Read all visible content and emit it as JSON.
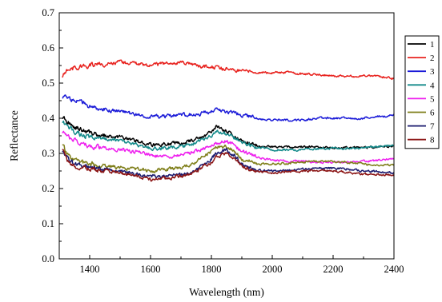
{
  "chart_data": {
    "type": "line",
    "title": "",
    "xlabel": "Wavelength (nm)",
    "ylabel": "Reflectance",
    "xlim": [
      1300,
      2400
    ],
    "ylim": [
      0.0,
      0.7
    ],
    "xticks": [
      1400,
      1600,
      1800,
      2000,
      2200,
      2400
    ],
    "yticks": [
      "0.0",
      "0.1",
      "0.2",
      "0.3",
      "0.4",
      "0.5",
      "0.6",
      "0.7"
    ],
    "grid": false,
    "legend_position": "right",
    "x": [
      1310,
      1325,
      1350,
      1400,
      1450,
      1500,
      1550,
      1600,
      1650,
      1700,
      1750,
      1800,
      1815,
      1850,
      1875,
      1900,
      1950,
      2000,
      2050,
      2100,
      2150,
      2200,
      2250,
      2300,
      2350,
      2400
    ],
    "series": [
      {
        "name": "1",
        "color": "#000000",
        "values": [
          0.405,
          0.39,
          0.375,
          0.36,
          0.35,
          0.345,
          0.335,
          0.325,
          0.325,
          0.33,
          0.34,
          0.36,
          0.375,
          0.365,
          0.35,
          0.335,
          0.322,
          0.318,
          0.318,
          0.318,
          0.318,
          0.316,
          0.316,
          0.318,
          0.318,
          0.32
        ]
      },
      {
        "name": "2",
        "color": "#e8231f",
        "values": [
          0.52,
          0.535,
          0.545,
          0.55,
          0.555,
          0.56,
          0.555,
          0.55,
          0.555,
          0.56,
          0.55,
          0.545,
          0.545,
          0.54,
          0.535,
          0.535,
          0.53,
          0.53,
          0.53,
          0.525,
          0.525,
          0.52,
          0.52,
          0.52,
          0.518,
          0.513
        ]
      },
      {
        "name": "3",
        "color": "#1c1cd8",
        "values": [
          0.46,
          0.455,
          0.45,
          0.435,
          0.425,
          0.42,
          0.41,
          0.405,
          0.405,
          0.41,
          0.41,
          0.42,
          0.425,
          0.42,
          0.415,
          0.41,
          0.4,
          0.395,
          0.395,
          0.395,
          0.4,
          0.4,
          0.4,
          0.4,
          0.405,
          0.408
        ]
      },
      {
        "name": "4",
        "color": "#138a8a",
        "values": [
          0.39,
          0.38,
          0.36,
          0.345,
          0.34,
          0.335,
          0.325,
          0.315,
          0.315,
          0.32,
          0.33,
          0.35,
          0.36,
          0.355,
          0.345,
          0.33,
          0.318,
          0.31,
          0.31,
          0.31,
          0.312,
          0.314,
          0.314,
          0.316,
          0.32,
          0.323
        ]
      },
      {
        "name": "5",
        "color": "#ee20ee",
        "values": [
          0.36,
          0.35,
          0.335,
          0.32,
          0.315,
          0.31,
          0.305,
          0.295,
          0.29,
          0.295,
          0.305,
          0.325,
          0.33,
          0.335,
          0.325,
          0.305,
          0.29,
          0.28,
          0.278,
          0.278,
          0.275,
          0.275,
          0.275,
          0.278,
          0.28,
          0.286
        ]
      },
      {
        "name": "6",
        "color": "#7f7f1a",
        "values": [
          0.325,
          0.3,
          0.28,
          0.27,
          0.265,
          0.26,
          0.255,
          0.25,
          0.255,
          0.26,
          0.275,
          0.305,
          0.32,
          0.32,
          0.305,
          0.285,
          0.27,
          0.27,
          0.272,
          0.275,
          0.278,
          0.278,
          0.274,
          0.27,
          0.268,
          0.265
        ]
      },
      {
        "name": "7",
        "color": "#1a1a6e",
        "values": [
          0.305,
          0.285,
          0.27,
          0.26,
          0.255,
          0.25,
          0.24,
          0.235,
          0.235,
          0.24,
          0.25,
          0.285,
          0.3,
          0.31,
          0.295,
          0.27,
          0.252,
          0.25,
          0.252,
          0.255,
          0.258,
          0.258,
          0.255,
          0.25,
          0.248,
          0.245
        ]
      },
      {
        "name": "8",
        "color": "#8b1414",
        "values": [
          0.31,
          0.28,
          0.265,
          0.255,
          0.25,
          0.245,
          0.235,
          0.225,
          0.228,
          0.235,
          0.248,
          0.275,
          0.29,
          0.3,
          0.29,
          0.265,
          0.248,
          0.245,
          0.248,
          0.25,
          0.25,
          0.25,
          0.245,
          0.24,
          0.24,
          0.238
        ]
      }
    ]
  }
}
